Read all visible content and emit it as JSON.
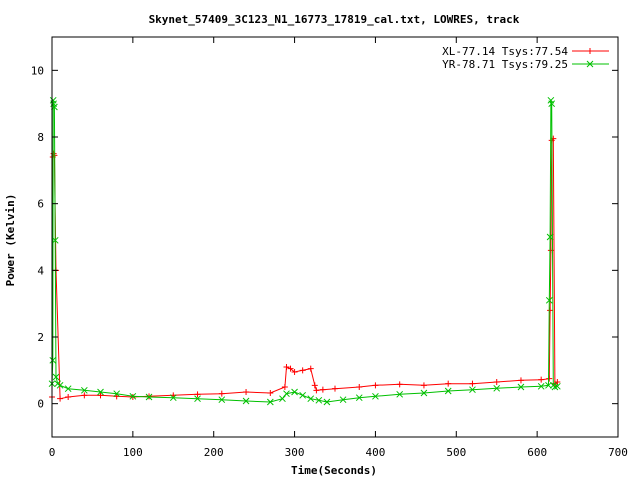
{
  "chart_data": {
    "type": "line",
    "title": "Skynet_57409_3C123_N1_16773_17819_cal.txt, LOWRES, track",
    "xlabel": "Time(Seconds)",
    "ylabel": "Power (Kelvin)",
    "xlim": [
      0,
      700
    ],
    "ylim": [
      -1,
      11
    ],
    "xticks": [
      0,
      100,
      200,
      300,
      400,
      500,
      600,
      700
    ],
    "yticks": [
      0,
      2,
      4,
      6,
      8,
      10
    ],
    "grid": false,
    "legend_position": "top-right",
    "series": [
      {
        "name": "XL-77.14 Tsys:77.54",
        "color": "#ff0000",
        "marker": "plus",
        "x": [
          0,
          1,
          2,
          3,
          5,
          10,
          20,
          40,
          60,
          80,
          100,
          120,
          150,
          180,
          210,
          240,
          270,
          288,
          290,
          295,
          300,
          310,
          320,
          325,
          327,
          335,
          350,
          380,
          400,
          430,
          460,
          490,
          520,
          550,
          580,
          605,
          615,
          616,
          617,
          618,
          620,
          622,
          625
        ],
        "y": [
          0.2,
          7.4,
          7.5,
          7.45,
          4.0,
          0.15,
          0.2,
          0.25,
          0.25,
          0.22,
          0.2,
          0.22,
          0.25,
          0.28,
          0.3,
          0.35,
          0.32,
          0.5,
          1.1,
          1.05,
          0.95,
          1.0,
          1.05,
          0.55,
          0.4,
          0.42,
          0.45,
          0.5,
          0.55,
          0.58,
          0.55,
          0.6,
          0.6,
          0.65,
          0.7,
          0.72,
          0.75,
          2.8,
          4.6,
          7.9,
          7.95,
          0.6,
          0.65
        ]
      },
      {
        "name": "YR-78.71 Tsys:79.25",
        "color": "#00c000",
        "marker": "cross",
        "x": [
          0,
          1,
          1.5,
          2,
          3,
          4,
          5,
          7,
          10,
          20,
          40,
          60,
          80,
          100,
          120,
          150,
          180,
          210,
          240,
          270,
          285,
          290,
          300,
          310,
          320,
          330,
          340,
          360,
          380,
          400,
          430,
          460,
          490,
          520,
          550,
          580,
          605,
          614,
          615,
          616,
          617,
          618,
          620,
          622,
          625
        ],
        "y": [
          0.6,
          1.3,
          9.1,
          9.0,
          8.9,
          4.9,
          0.8,
          0.6,
          0.55,
          0.45,
          0.4,
          0.35,
          0.3,
          0.22,
          0.2,
          0.18,
          0.15,
          0.12,
          0.08,
          0.05,
          0.15,
          0.3,
          0.35,
          0.25,
          0.15,
          0.1,
          0.05,
          0.12,
          0.18,
          0.22,
          0.28,
          0.32,
          0.38,
          0.42,
          0.46,
          0.5,
          0.52,
          0.55,
          3.1,
          5.0,
          9.1,
          9.0,
          0.55,
          0.5,
          0.52
        ]
      }
    ]
  }
}
